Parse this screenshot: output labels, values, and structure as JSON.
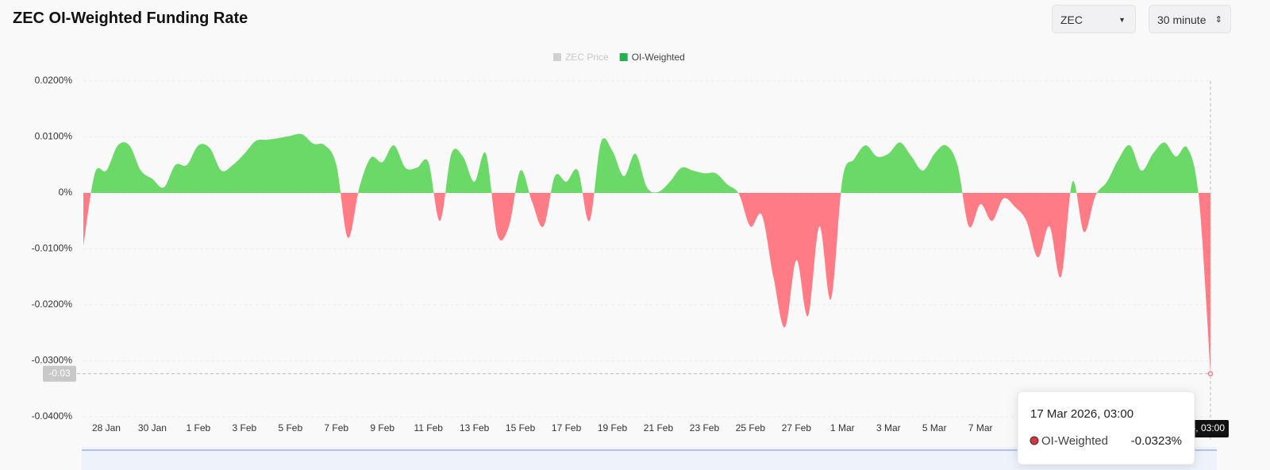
{
  "header": {
    "title": "ZEC OI-Weighted Funding Rate"
  },
  "controls": {
    "asset": "ZEC",
    "interval": "30 minute"
  },
  "chart_data": {
    "type": "area",
    "legend": [
      {
        "name": "ZEC Price",
        "color": "#cccccc",
        "hidden": true
      },
      {
        "name": "OI-Weighted",
        "color": "#22b14c"
      }
    ],
    "categories": [
      null,
      null,
      "28 Jan",
      null,
      null,
      null,
      "30 Jan",
      null,
      null,
      null,
      "1 Feb",
      null,
      null,
      null,
      "3 Feb",
      null,
      null,
      null,
      "5 Feb",
      null,
      null,
      null,
      "7 Feb",
      null,
      null,
      null,
      "9 Feb",
      null,
      null,
      null,
      "11 Feb",
      null,
      null,
      null,
      "13 Feb",
      null,
      null,
      null,
      "15 Feb",
      null,
      null,
      null,
      "17 Feb",
      null,
      null,
      null,
      "19 Feb",
      null,
      null,
      null,
      "21 Feb",
      null,
      null,
      null,
      "23 Feb",
      null,
      null,
      null,
      "25 Feb",
      null,
      null,
      null,
      "27 Feb",
      null,
      null,
      null,
      "1 Mar",
      null,
      null,
      null,
      "3 Mar",
      null,
      null,
      null,
      "5 Mar",
      null,
      null,
      null,
      "7 Mar",
      null,
      null,
      null,
      null,
      null,
      null,
      null,
      null,
      null,
      null,
      null,
      null,
      null,
      null,
      null,
      null,
      null,
      null,
      null,
      null
    ],
    "series": [
      {
        "name": "OI-Weighted",
        "color": "#6bd967",
        "negative_color": "#ff7b86",
        "values": [
          -0.0095,
          0.0035,
          0.004,
          0.0085,
          0.0085,
          0.004,
          0.0025,
          0.001,
          0.005,
          0.005,
          0.0085,
          0.008,
          0.004,
          0.005,
          0.007,
          0.0093,
          0.0095,
          0.0098,
          0.0102,
          0.0105,
          0.0088,
          0.0085,
          0.005,
          -0.008,
          0.001,
          0.0063,
          0.0055,
          0.0085,
          0.0045,
          0.0045,
          0.0055,
          -0.005,
          0.007,
          0.0065,
          0.002,
          0.007,
          -0.0075,
          -0.006,
          0.004,
          -0.0015,
          -0.006,
          0.003,
          0.002,
          0.004,
          -0.005,
          0.009,
          0.0075,
          0.003,
          0.007,
          0.001,
          0.0002,
          0.002,
          0.0045,
          0.004,
          0.0035,
          0.0035,
          0.0015,
          -0.0002,
          -0.006,
          -0.004,
          -0.015,
          -0.024,
          -0.012,
          -0.022,
          -0.006,
          -0.019,
          0.0025,
          0.006,
          0.0085,
          0.0065,
          0.007,
          0.009,
          0.0065,
          0.004,
          0.007,
          0.0085,
          0.005,
          -0.006,
          -0.002,
          -0.005,
          -0.001,
          -0.0025,
          -0.005,
          -0.0115,
          -0.006,
          -0.015,
          0.002,
          -0.007,
          -0.0005,
          0.002,
          0.006,
          0.0085,
          0.004,
          0.007,
          0.009,
          0.0065,
          0.008,
          -0.001,
          -0.0323
        ]
      }
    ],
    "ylim": [
      -0.04,
      0.02
    ],
    "yticks": [
      {
        "value": 0.02,
        "label": "0.0200%"
      },
      {
        "value": 0.01,
        "label": "0.0100%"
      },
      {
        "value": 0,
        "label": "0%"
      },
      {
        "value": -0.01,
        "label": "-0.0100%"
      },
      {
        "value": -0.02,
        "label": "-0.0200%"
      },
      {
        "value": -0.03,
        "label": "-0.0300%"
      },
      {
        "value": -0.04,
        "label": "-0.0400%"
      }
    ],
    "grid": true,
    "crosshair_label": "-0.03",
    "tooltip": {
      "title": "17 Mar 2026, 03:00",
      "value_label": "-0.0323%"
    }
  }
}
